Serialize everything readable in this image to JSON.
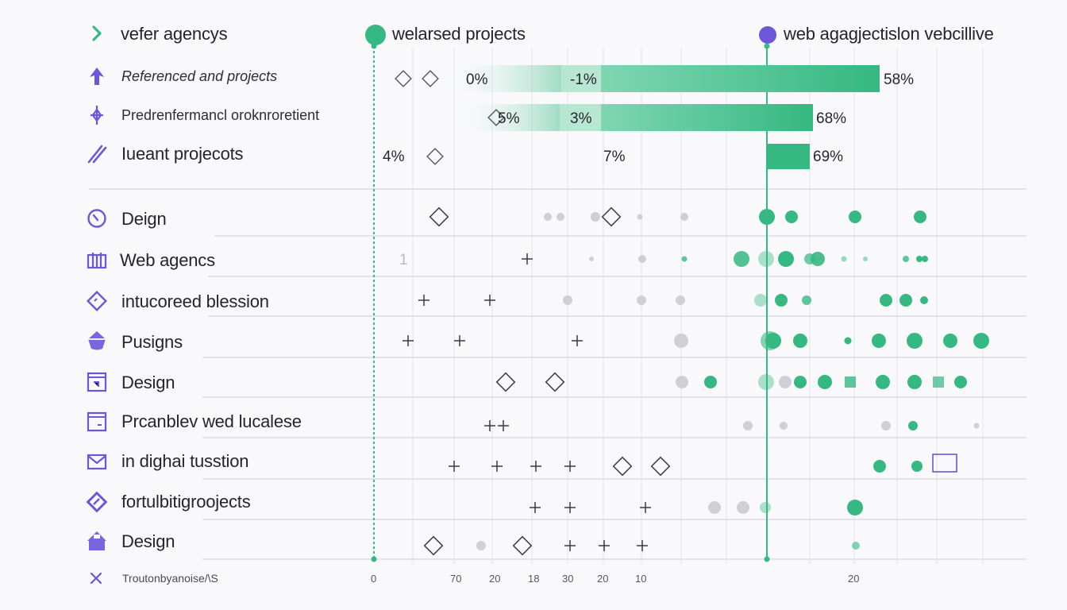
{
  "colors": {
    "accent_green": "#35b882",
    "accent_purple": "#6c56d9",
    "text": "#24242c",
    "grid": "#d6d6de"
  },
  "legend": {
    "item1": {
      "label": "vefer agencys",
      "icon": "chevron-right-icon"
    },
    "item2": {
      "label": "welarsed projects",
      "marker": "green-dot"
    },
    "item3": {
      "label": "web agagjectislon vebcillive",
      "marker": "purple-dot"
    }
  },
  "footer": {
    "label": "Troutonbyanoise/\\S",
    "icon": "close-icon"
  },
  "chart_data": {
    "type": "bar",
    "bar_rows": [
      {
        "label": "Referenced and projects",
        "icon": "arrow-up-icon",
        "segments": [
          "0%",
          "-1%"
        ],
        "value": 58,
        "value_label": "58%"
      },
      {
        "label": "Predrenfermancl oroknroretient",
        "icon": "pin-icon",
        "segments": [
          "5%",
          "3%"
        ],
        "value": 68,
        "value_label": "68%"
      },
      {
        "label": "Iueant projecots",
        "icon": "slash-icon",
        "segments": [
          "4%",
          "7%"
        ],
        "value": 69,
        "value_label": "69%"
      }
    ],
    "dot_rows": [
      {
        "label": "Deign",
        "icon": "gauge-icon"
      },
      {
        "label": "Web agencs",
        "icon": "columns-icon"
      },
      {
        "label": "intucoreed blession",
        "icon": "diamond-icon"
      },
      {
        "label": "Pusigns",
        "icon": "shield-icon"
      },
      {
        "label": "Design",
        "icon": "window-icon"
      },
      {
        "label": "Prcanblev wed lucalese",
        "icon": "browser-icon"
      },
      {
        "label": "in dighai tusstion",
        "icon": "mail-icon"
      },
      {
        "label": "fortulbitigroojects",
        "icon": "tag-icon"
      },
      {
        "label": "Design",
        "icon": "home-icon"
      }
    ],
    "x_ticks": [
      "0",
      "70",
      "20",
      "18",
      "30",
      "20",
      "10",
      "20"
    ],
    "row_annotation": "1"
  }
}
